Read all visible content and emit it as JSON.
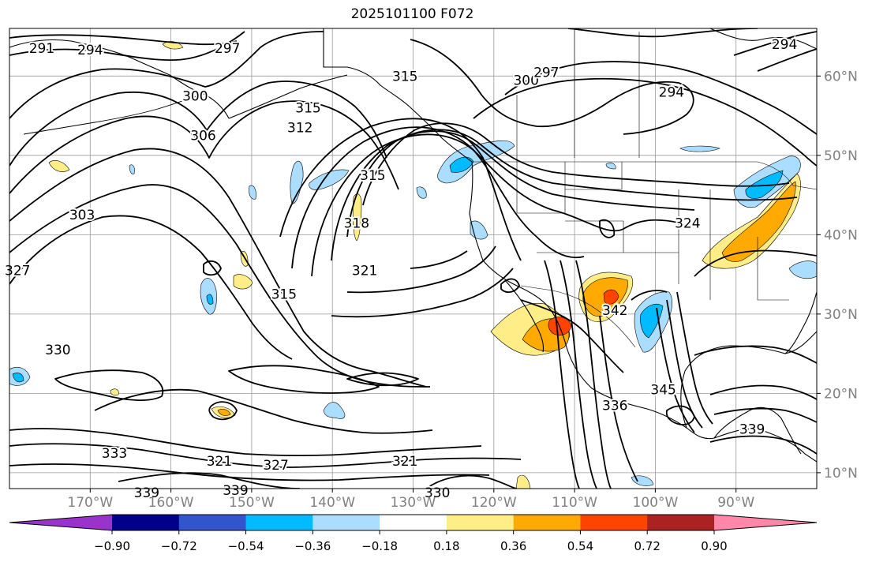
{
  "title": "2025101100 F072",
  "lat_labels": [
    "60°N",
    "50°N",
    "40°N",
    "30°N",
    "20°N",
    "10°N"
  ],
  "lat_values": [
    60,
    50,
    40,
    30,
    20,
    10
  ],
  "lon_labels": [
    "170°W",
    "160°W",
    "150°W",
    "140°W",
    "130°W",
    "120°W",
    "110°W",
    "100°W",
    "90°W"
  ],
  "lon_values": [
    -170,
    -160,
    -150,
    -140,
    -130,
    -120,
    -110,
    -100,
    -90
  ],
  "map_extent": {
    "lon": [
      -180,
      -80
    ],
    "lat": [
      8,
      66
    ]
  },
  "contour_labels": [
    {
      "text": "291",
      "lon": -176,
      "lat": 63.5
    },
    {
      "text": "294",
      "lon": -170,
      "lat": 63.3
    },
    {
      "text": "297",
      "lon": -153,
      "lat": 63.5
    },
    {
      "text": "300",
      "lon": -157,
      "lat": 57.5
    },
    {
      "text": "306",
      "lon": -156,
      "lat": 52.5
    },
    {
      "text": "315",
      "lon": -143,
      "lat": 56
    },
    {
      "text": "312",
      "lon": -144,
      "lat": 53.5
    },
    {
      "text": "315",
      "lon": -131,
      "lat": 60
    },
    {
      "text": "315",
      "lon": -135,
      "lat": 47.5
    },
    {
      "text": "300",
      "lon": -116,
      "lat": 59.5
    },
    {
      "text": "297",
      "lon": -113.5,
      "lat": 60.5
    },
    {
      "text": "294",
      "lon": -98,
      "lat": 58
    },
    {
      "text": "294",
      "lon": -84,
      "lat": 64
    },
    {
      "text": "303",
      "lon": -171,
      "lat": 42.5
    },
    {
      "text": "327",
      "lon": -179,
      "lat": 35.5
    },
    {
      "text": "318",
      "lon": -137,
      "lat": 41.5
    },
    {
      "text": "315",
      "lon": -146,
      "lat": 32.5
    },
    {
      "text": "321",
      "lon": -136,
      "lat": 35.5
    },
    {
      "text": "324",
      "lon": -96,
      "lat": 41.5
    },
    {
      "text": "342",
      "lon": -105,
      "lat": 30.5
    },
    {
      "text": "330",
      "lon": -174,
      "lat": 25.5
    },
    {
      "text": "336",
      "lon": -105,
      "lat": 18.5
    },
    {
      "text": "345",
      "lon": -99,
      "lat": 20.5
    },
    {
      "text": "339",
      "lon": -88,
      "lat": 15.5
    },
    {
      "text": "333",
      "lon": -167,
      "lat": 12.5
    },
    {
      "text": "321",
      "lon": -154,
      "lat": 11.5
    },
    {
      "text": "327",
      "lon": -147,
      "lat": 11
    },
    {
      "text": "321",
      "lon": -131,
      "lat": 11.5
    },
    {
      "text": "339",
      "lon": -163,
      "lat": 7.5
    },
    {
      "text": "339",
      "lon": -152,
      "lat": 7.8
    },
    {
      "text": "330",
      "lon": -127,
      "lat": 7.5
    }
  ],
  "colorbar": {
    "levels": [
      "−0.90",
      "−0.72",
      "−0.54",
      "−0.36",
      "−0.18",
      "0.18",
      "0.36",
      "0.54",
      "0.72",
      "0.90"
    ],
    "colors": [
      "#9933cc",
      "#000088",
      "#3355cc",
      "#00bbff",
      "#aaddff",
      "#ffffff",
      "#ffee88",
      "#ffaa00",
      "#ff4400",
      "#aa2222",
      "#ff88aa"
    ]
  },
  "fill_colors": {
    "light_blue": "#aaddff",
    "cyan": "#00bbff",
    "light_yellow": "#ffee88",
    "orange": "#ffaa00",
    "red_orange": "#ff4400"
  }
}
